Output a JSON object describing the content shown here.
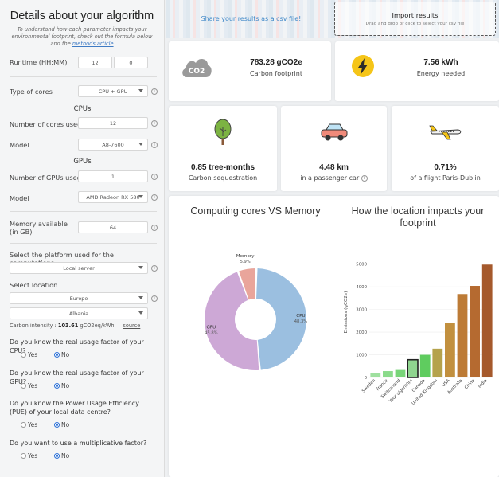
{
  "left": {
    "title": "Details about your algorithm",
    "intro": "To understand how each parameter impacts your environmental footprint, check out the formula below and the",
    "intro_link": "methods article",
    "runtime": {
      "label": "Runtime (HH:MM)",
      "hours": "12",
      "minutes": "0"
    },
    "cores": {
      "label": "Type of cores",
      "value": "CPU + GPU"
    },
    "cpus_head": "CPUs",
    "n_cores": {
      "label": "Number of cores used",
      "value": "12"
    },
    "cpu_model": {
      "label": "Model",
      "value": "A8-7600"
    },
    "gpus_head": "GPUs",
    "n_gpus": {
      "label": "Number of GPUs used",
      "value": "1"
    },
    "gpu_model": {
      "label": "Model",
      "value": "AMD Radeon RX 580"
    },
    "memory": {
      "label": "Memory available (in GB)",
      "value": "64"
    },
    "platform": {
      "label": "Select the platform used for the computations",
      "value": "Local server"
    },
    "location": {
      "label": "Select location",
      "continent": "Europe",
      "country": "Albania"
    },
    "carbon_intensity": {
      "label": "Carbon intensity :",
      "value": "103.61",
      "unit": "gCO2eq/kWh",
      "dash": "—",
      "source": "source"
    },
    "q_cpu": {
      "question": "Do you know the real usage factor of your CPU?",
      "yes": "Yes",
      "no": "No"
    },
    "q_gpu": {
      "question": "Do you know the real usage factor of your GPU?",
      "yes": "Yes",
      "no": "No"
    },
    "q_pue": {
      "question": "Do you know the Power Usage Efficiency (PUE) of your local data centre?",
      "yes": "Yes",
      "no": "No"
    },
    "q_mult": {
      "question": "Do you want to use a multiplicative factor?",
      "yes": "Yes",
      "no": "No"
    },
    "info_glyph": "i"
  },
  "top": {
    "share": "Share your results as a csv file!",
    "import_title": "Import results",
    "import_sub": "Drag and drop or click to select your csv file"
  },
  "cards": {
    "carbon": {
      "value": "783.28 gCO2e",
      "label": "Carbon footprint",
      "icon": "co2-cloud-icon",
      "icon_text": "CO2"
    },
    "energy": {
      "value": "7.56 kWh",
      "label": "Energy needed",
      "icon": "lightning-icon"
    },
    "tree": {
      "value": "0.85 tree-months",
      "label": "Carbon sequestration",
      "icon": "tree-icon"
    },
    "car": {
      "value": "4.48 km",
      "label": "in a passenger car",
      "icon": "car-icon"
    },
    "flight": {
      "value": "0.71%",
      "label": "of a flight Paris-Dublin",
      "icon": "plane-icon"
    }
  },
  "colors": {
    "cpu": "#9bbfe0",
    "gpu": "#cda8d6",
    "memory": "#e9a59b",
    "accent": "#3f88c8"
  },
  "chart_data": [
    {
      "type": "pie",
      "title": "Computing cores VS Memory",
      "labels": [
        "CPU",
        "GPU",
        "Memory"
      ],
      "values": [
        48.3,
        45.8,
        5.9
      ],
      "value_labels": [
        "48.3%",
        "45.8%",
        "5.9%"
      ],
      "hole": true
    },
    {
      "type": "bar",
      "title": "How the location impacts your footprint",
      "ylabel": "Emissions (gCO2e)",
      "categories": [
        "Sweden",
        "France",
        "Switzerland",
        "Your algorithm",
        "Canada",
        "United Kingdom",
        "USA",
        "Australia",
        "China",
        "India"
      ],
      "values": [
        190,
        280,
        330,
        783,
        1000,
        1270,
        2420,
        3680,
        4040,
        4980
      ],
      "highlight": "Your algorithm",
      "ylim": [
        0,
        5200
      ],
      "yticks": [
        0,
        1000,
        2000,
        3000,
        4000,
        5000
      ],
      "ytick_labels": [
        "0",
        "1000",
        "2000",
        "3000",
        "4000",
        "5000"
      ],
      "grid": true
    }
  ]
}
